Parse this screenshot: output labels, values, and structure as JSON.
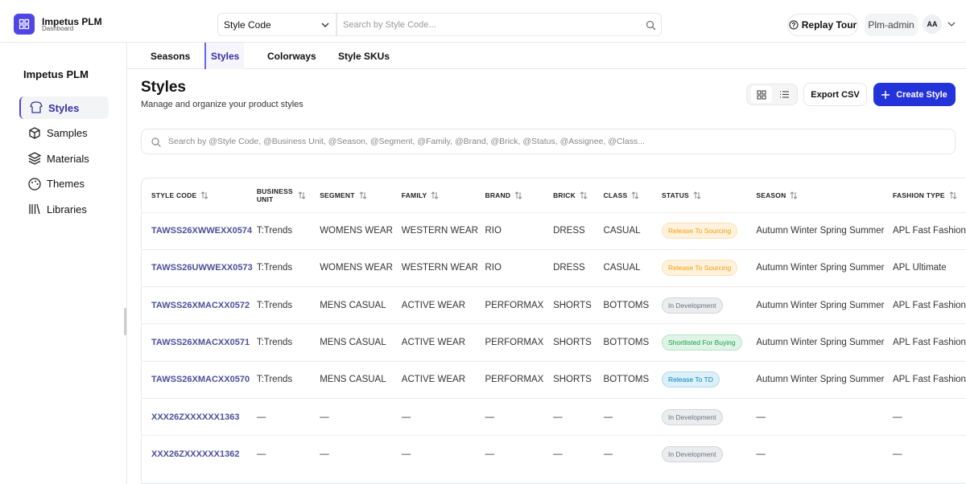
{
  "header": {
    "app_name": "Impetus PLM",
    "app_sub": "Dashboard",
    "search_type": "Style Code",
    "search_placeholder": "Search by Style Code...",
    "replay": "Replay Tour",
    "user": "Plm-admin",
    "avatar": "AA"
  },
  "sidebar": {
    "title": "Impetus PLM",
    "items": [
      "Styles",
      "Samples",
      "Materials",
      "Themes",
      "Libraries"
    ]
  },
  "tabs": [
    "Seasons",
    "Styles",
    "Colorways",
    "Style SKUs"
  ],
  "page": {
    "title": "Styles",
    "subtitle": "Manage and organize your product styles",
    "export": "Export CSV",
    "create": "Create Style",
    "filter_placeholder": "Search by @Style Code, @Business Unit, @Season, @Segment, @Family, @Brand, @Brick, @Status, @Assignee, @Class..."
  },
  "table": {
    "columns": [
      "STYLE CODE",
      "BUSINESS UNIT",
      "SEGMENT",
      "FAMILY",
      "BRAND",
      "BRICK",
      "CLASS",
      "STATUS",
      "SEASON",
      "FASHION TYPE"
    ],
    "rows": [
      [
        "TAWSS26XWWEXX0574",
        "T:Trends",
        "WOMENS WEAR",
        "WESTERN WEAR",
        "RIO",
        "DRESS",
        "CASUAL",
        "Release To Sourcing",
        "Autumn Winter Spring Summer",
        "APL Fast Fashion"
      ],
      [
        "TAWSS26UWWEXX0573",
        "T:Trends",
        "WOMENS WEAR",
        "WESTERN WEAR",
        "RIO",
        "DRESS",
        "CASUAL",
        "Release To Sourcing",
        "Autumn Winter Spring Summer",
        "APL Ultimate"
      ],
      [
        "TAWSS26XMACXX0572",
        "T:Trends",
        "MENS CASUAL",
        "ACTIVE WEAR",
        "PERFORMAX",
        "SHORTS",
        "BOTTOMS",
        "In Development",
        "Autumn Winter Spring Summer",
        "APL Fast Fashion"
      ],
      [
        "TAWSS26XMACXX0571",
        "T:Trends",
        "MENS CASUAL",
        "ACTIVE WEAR",
        "PERFORMAX",
        "SHORTS",
        "BOTTOMS",
        "Shortlisted For Buying",
        "Autumn Winter Spring Summer",
        "APL Fast Fashion"
      ],
      [
        "TAWSS26XMACXX0570",
        "T:Trends",
        "MENS CASUAL",
        "ACTIVE WEAR",
        "PERFORMAX",
        "SHORTS",
        "BOTTOMS",
        "Release To TD",
        "Autumn Winter Spring Summer",
        "APL Fast Fashion"
      ],
      [
        "XXX26ZXXXXXX1363",
        "—",
        "—",
        "—",
        "—",
        "—",
        "—",
        "In Development",
        "—",
        "—"
      ],
      [
        "XXX26ZXXXXXX1362",
        "—",
        "—",
        "—",
        "—",
        "—",
        "—",
        "In Development",
        "—",
        "—"
      ]
    ],
    "status_colors": [
      "#f59e0b",
      "#f59e0b",
      "#6b7280",
      "#16a34a",
      "#0284c7",
      "#6b7280",
      "#6b7280"
    ]
  }
}
